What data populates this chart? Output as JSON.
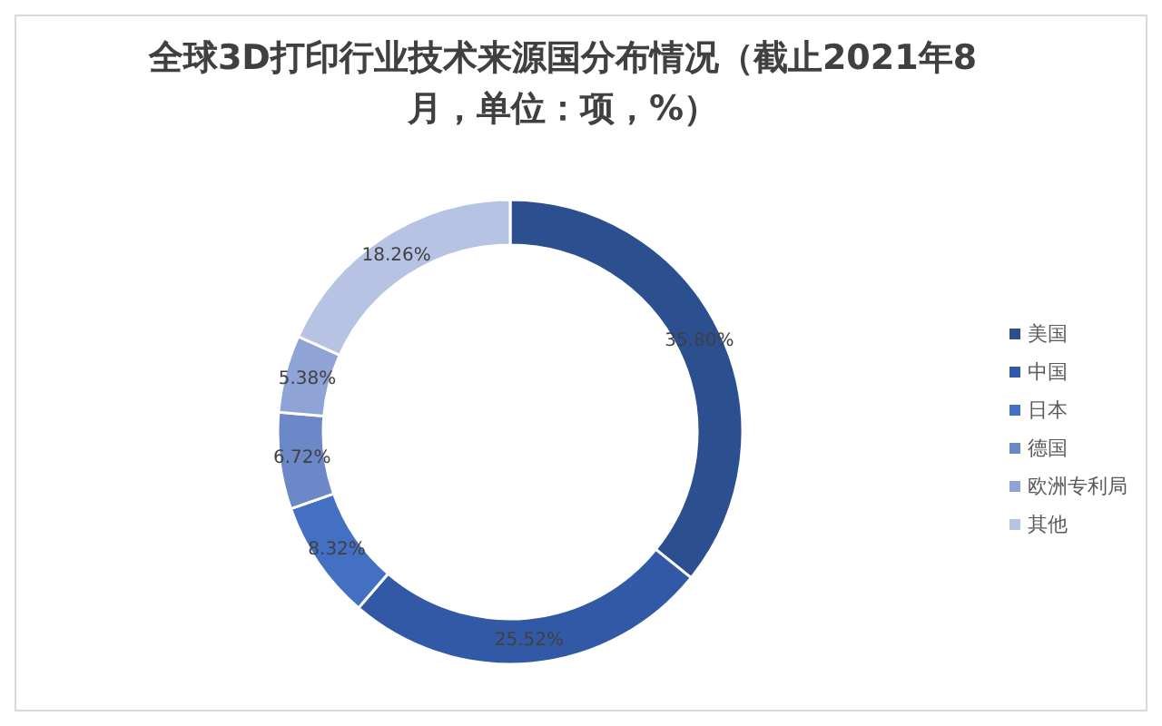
{
  "chart_data": {
    "type": "donut",
    "title": "全球3D打印行业技术来源国分布情况（截止2021年8月，单位：项，%）",
    "categories": [
      "美国",
      "中国",
      "日本",
      "德国",
      "欧洲专利局",
      "其他"
    ],
    "values": [
      35.8,
      25.52,
      8.32,
      6.72,
      5.38,
      18.26
    ],
    "value_labels": [
      "35.80%",
      "25.52%",
      "8.32%",
      "6.72%",
      "5.38%",
      "18.26%"
    ],
    "colors": [
      "#2c4f8f",
      "#3159a6",
      "#4370c2",
      "#6d88c9",
      "#8fa3d6",
      "#b7c3e2"
    ],
    "legend": "right"
  }
}
